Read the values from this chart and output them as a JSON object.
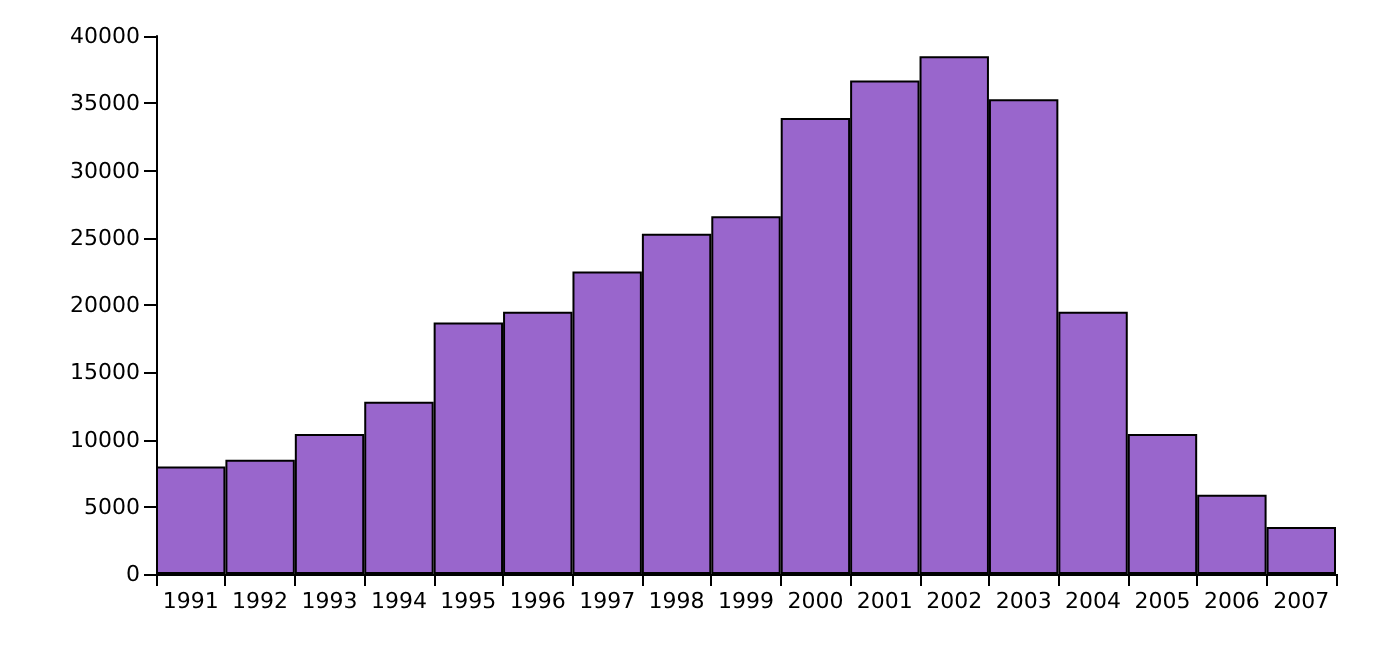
{
  "chart_data": {
    "type": "bar",
    "categories": [
      "1991",
      "1992",
      "1993",
      "1994",
      "1995",
      "1996",
      "1997",
      "1998",
      "1999",
      "2000",
      "2001",
      "2002",
      "2003",
      "2004",
      "2005",
      "2006",
      "2007"
    ],
    "values": [
      8000,
      8500,
      10400,
      12800,
      18700,
      19500,
      22500,
      25300,
      26600,
      33900,
      36700,
      38500,
      35300,
      19500,
      10400,
      5900,
      3500
    ],
    "color": "#9966cc",
    "ylim": [
      0,
      40000
    ],
    "yticks": [
      0,
      5000,
      10000,
      15000,
      20000,
      25000,
      30000,
      35000,
      40000
    ],
    "grid": false
  }
}
